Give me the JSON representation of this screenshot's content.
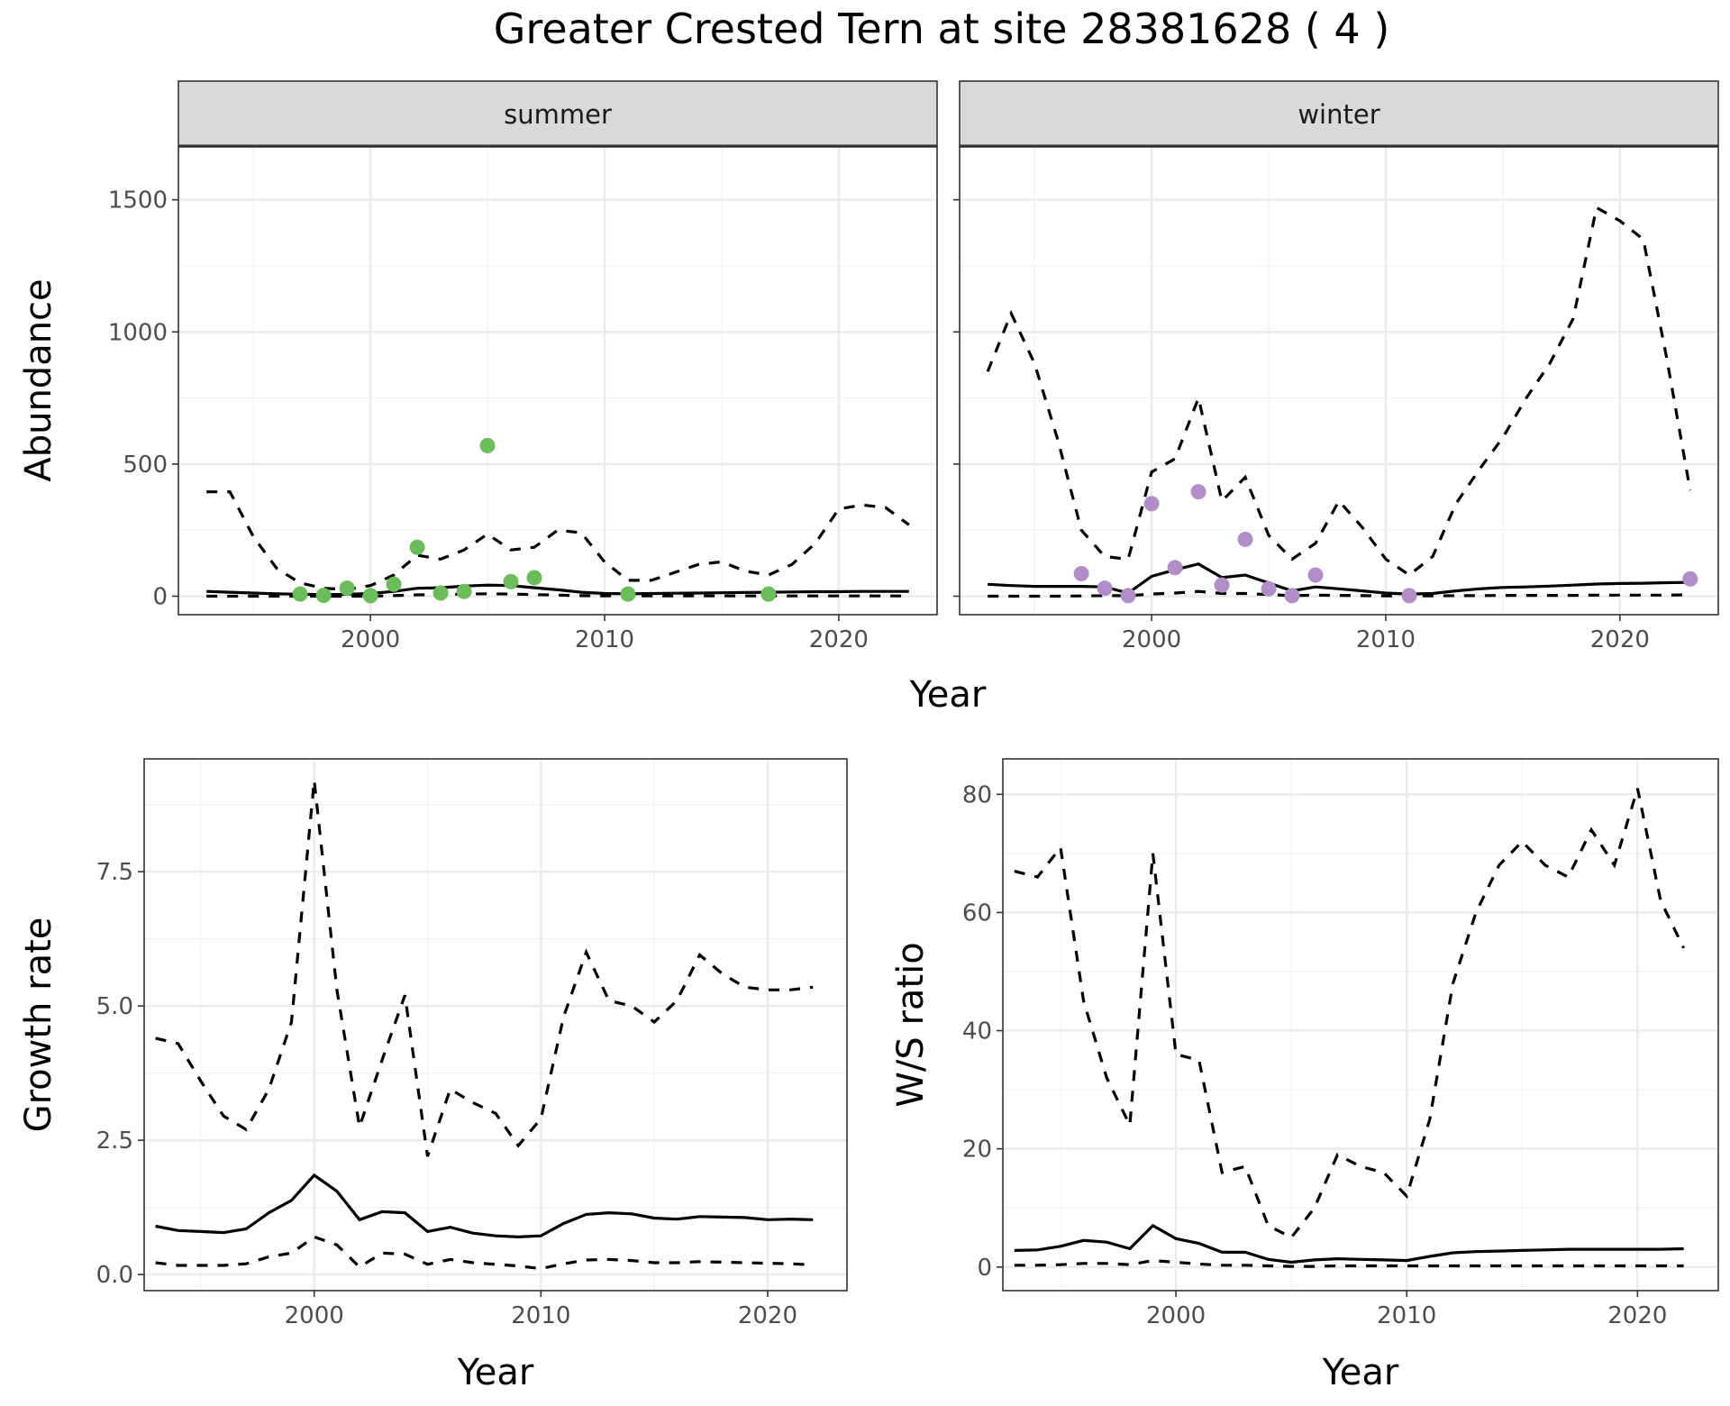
{
  "title": "Greater Crested Tern at site 28381628 ( 4 )",
  "chart_data": [
    {
      "type": "line",
      "panel": "abundance-facet",
      "facets": [
        {
          "strip": "summer",
          "point_color": "#6abd5a",
          "x": [
            1993,
            1994,
            1995,
            1996,
            1997,
            1998,
            1999,
            2000,
            2001,
            2002,
            2003,
            2004,
            2005,
            2006,
            2007,
            2008,
            2009,
            2010,
            2011,
            2012,
            2013,
            2014,
            2015,
            2016,
            2017,
            2018,
            2019,
            2020,
            2021,
            2022,
            2023
          ],
          "series": [
            {
              "role": "upper",
              "values": [
                395,
                395,
                225,
                105,
                50,
                30,
                25,
                40,
                80,
                155,
                140,
                175,
                235,
                175,
                185,
                250,
                240,
                130,
                60,
                60,
                90,
                120,
                130,
                95,
                80,
                120,
                200,
                330,
                345,
                335,
                270
              ]
            },
            {
              "role": "estimate",
              "values": [
                18,
                15,
                12,
                9,
                7,
                6,
                7,
                10,
                18,
                30,
                32,
                38,
                42,
                40,
                32,
                24,
                15,
                10,
                9,
                10,
                11,
                12,
                13,
                14,
                15,
                16,
                17,
                17,
                18,
                18,
                18
              ]
            },
            {
              "role": "lower",
              "values": [
                0,
                0,
                0,
                0,
                0,
                0,
                0,
                0,
                2,
                5,
                6,
                8,
                9,
                8,
                6,
                4,
                2,
                1,
                1,
                1,
                1,
                1,
                1,
                1,
                1,
                1,
                1,
                1,
                1,
                1,
                1
              ]
            }
          ],
          "points": [
            [
              1997,
              8
            ],
            [
              1998,
              3
            ],
            [
              1999,
              30
            ],
            [
              2000,
              2
            ],
            [
              2001,
              45
            ],
            [
              2002,
              185
            ],
            [
              2003,
              12
            ],
            [
              2004,
              18
            ],
            [
              2005,
              570
            ],
            [
              2006,
              55
            ],
            [
              2007,
              70
            ],
            [
              2011,
              8
            ],
            [
              2017,
              8
            ]
          ]
        },
        {
          "strip": "winter",
          "point_color": "#b18ec8",
          "x": [
            1993,
            1994,
            1995,
            1996,
            1997,
            1998,
            1999,
            2000,
            2001,
            2002,
            2003,
            2004,
            2005,
            2006,
            2007,
            2008,
            2009,
            2010,
            2011,
            2012,
            2013,
            2014,
            2015,
            2016,
            2017,
            2018,
            2019,
            2020,
            2021,
            2022,
            2023
          ],
          "series": [
            {
              "role": "upper",
              "values": [
                850,
                1070,
                880,
                590,
                250,
                150,
                140,
                470,
                520,
                750,
                360,
                450,
                230,
                140,
                200,
                360,
                260,
                140,
                80,
                150,
                350,
                480,
                600,
                750,
                880,
                1050,
                1470,
                1420,
                1350,
                900,
                400
              ]
            },
            {
              "role": "estimate",
              "values": [
                45,
                40,
                37,
                37,
                37,
                35,
                12,
                75,
                100,
                122,
                70,
                80,
                50,
                20,
                35,
                28,
                20,
                12,
                8,
                10,
                20,
                28,
                33,
                35,
                38,
                42,
                46,
                48,
                49,
                51,
                52
              ]
            },
            {
              "role": "lower",
              "values": [
                0,
                0,
                0,
                0,
                1,
                2,
                2,
                8,
                12,
                18,
                10,
                10,
                6,
                2,
                4,
                3,
                2,
                1,
                1,
                1,
                2,
                2,
                3,
                3,
                3,
                3,
                4,
                4,
                4,
                4,
                5
              ]
            }
          ],
          "points": [
            [
              1997,
              85
            ],
            [
              1998,
              30
            ],
            [
              1999,
              2
            ],
            [
              2000,
              350
            ],
            [
              2001,
              108
            ],
            [
              2002,
              395
            ],
            [
              2003,
              42
            ],
            [
              2004,
              215
            ],
            [
              2005,
              28
            ],
            [
              2006,
              2
            ],
            [
              2007,
              80
            ],
            [
              2011,
              2
            ],
            [
              2023,
              65
            ]
          ]
        }
      ],
      "xlabel": "Year",
      "ylabel": "Abundance",
      "xlim": [
        1991.8,
        2024.2
      ],
      "ylim": [
        -70,
        1700
      ],
      "xticks": [
        2000,
        2010,
        2020
      ],
      "yticks": [
        0,
        500,
        1000,
        1500
      ],
      "grid": true,
      "legend": "none"
    },
    {
      "type": "line",
      "panel": "growth-rate",
      "x": [
        1993,
        1994,
        1995,
        1996,
        1997,
        1998,
        1999,
        2000,
        2001,
        2002,
        2003,
        2004,
        2005,
        2006,
        2007,
        2008,
        2009,
        2010,
        2011,
        2012,
        2013,
        2014,
        2015,
        2016,
        2017,
        2018,
        2019,
        2020,
        2021,
        2022
      ],
      "series": [
        {
          "role": "upper",
          "values": [
            4.4,
            4.3,
            3.6,
            2.95,
            2.7,
            3.45,
            4.7,
            9.2,
            5.3,
            2.75,
            4.0,
            5.2,
            2.2,
            3.45,
            3.2,
            3.0,
            2.4,
            2.9,
            4.8,
            6.0,
            5.1,
            5.0,
            4.7,
            5.1,
            5.95,
            5.6,
            5.35,
            5.3,
            5.3,
            5.35
          ]
        },
        {
          "role": "estimate",
          "values": [
            0.9,
            0.82,
            0.8,
            0.78,
            0.85,
            1.15,
            1.38,
            1.85,
            1.55,
            1.02,
            1.17,
            1.15,
            0.8,
            0.88,
            0.77,
            0.72,
            0.7,
            0.72,
            0.95,
            1.12,
            1.15,
            1.13,
            1.05,
            1.03,
            1.08,
            1.07,
            1.06,
            1.02,
            1.03,
            1.02
          ]
        },
        {
          "role": "lower",
          "values": [
            0.22,
            0.17,
            0.17,
            0.17,
            0.2,
            0.33,
            0.4,
            0.7,
            0.55,
            0.14,
            0.4,
            0.38,
            0.19,
            0.28,
            0.22,
            0.19,
            0.16,
            0.11,
            0.2,
            0.27,
            0.28,
            0.26,
            0.22,
            0.22,
            0.24,
            0.23,
            0.22,
            0.21,
            0.2,
            0.18
          ]
        }
      ],
      "xlabel": "Year",
      "ylabel": "Growth rate",
      "xlim": [
        1992.5,
        2023.5
      ],
      "ylim": [
        -0.3,
        9.6
      ],
      "xticks": [
        2000,
        2010,
        2020
      ],
      "yticks": [
        0.0,
        2.5,
        5.0,
        7.5
      ],
      "ytick_labels": [
        "0.0",
        "2.5",
        "5.0",
        "7.5"
      ],
      "grid": true,
      "legend": "none"
    },
    {
      "type": "line",
      "panel": "ws-ratio",
      "x": [
        1993,
        1994,
        1995,
        1996,
        1997,
        1998,
        1999,
        2000,
        2001,
        2002,
        2003,
        2004,
        2005,
        2006,
        2007,
        2008,
        2009,
        2010,
        2011,
        2012,
        2013,
        2014,
        2015,
        2016,
        2017,
        2018,
        2019,
        2020,
        2021,
        2022
      ],
      "series": [
        {
          "role": "upper",
          "values": [
            67,
            66,
            71,
            45,
            32,
            24,
            70,
            36,
            35,
            16,
            17,
            7,
            5,
            10,
            19,
            17,
            16,
            12,
            25,
            48,
            60,
            68,
            72,
            68,
            66,
            74,
            68,
            81,
            62,
            54
          ]
        },
        {
          "role": "estimate",
          "values": [
            2.8,
            2.9,
            3.5,
            4.5,
            4.2,
            3.1,
            7.0,
            4.8,
            4.0,
            2.5,
            2.5,
            1.3,
            0.8,
            1.2,
            1.4,
            1.3,
            1.2,
            1.1,
            1.8,
            2.4,
            2.6,
            2.7,
            2.8,
            2.9,
            3.0,
            3.0,
            3.0,
            3.0,
            3.0,
            3.1
          ]
        },
        {
          "role": "lower",
          "values": [
            0.3,
            0.3,
            0.4,
            0.6,
            0.6,
            0.4,
            1.1,
            0.8,
            0.5,
            0.3,
            0.3,
            0.2,
            0.1,
            0.1,
            0.2,
            0.2,
            0.2,
            0.2,
            0.2,
            0.2,
            0.2,
            0.2,
            0.2,
            0.2,
            0.2,
            0.2,
            0.2,
            0.2,
            0.2,
            0.2
          ]
        }
      ],
      "xlabel": "Year",
      "ylabel": "W/S ratio",
      "xlim": [
        1992.5,
        2023.5
      ],
      "ylim": [
        -4,
        86
      ],
      "xticks": [
        2000,
        2010,
        2020
      ],
      "yticks": [
        0,
        20,
        40,
        60,
        80
      ],
      "grid": true,
      "legend": "none"
    }
  ]
}
